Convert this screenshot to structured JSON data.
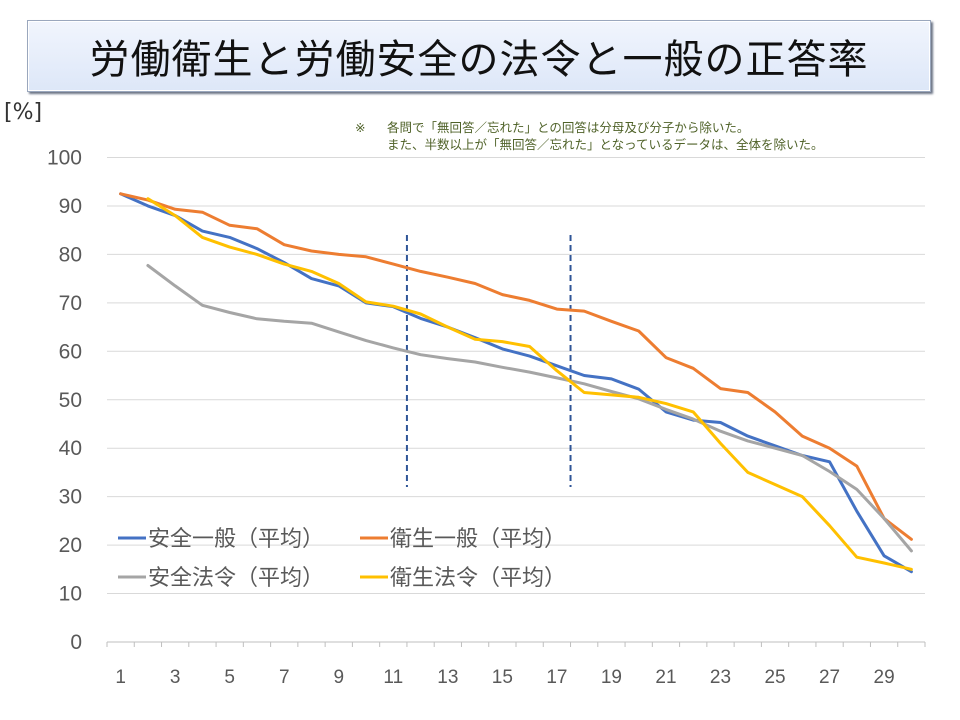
{
  "title": "労働衛生と労働安全の法令と一般の正答率",
  "unit_label": "[%]",
  "note": {
    "mark": "※",
    "line1": "各問で「無回答／忘れた」との回答は分母及び分子から除いた。",
    "line2": "また、半数以上が「無回答／忘れた」となっているデータは、全体を除いた。"
  },
  "chart_data": {
    "type": "line",
    "title": "労働衛生と労働安全の法令と一般の正答率",
    "ylabel": "[%]",
    "xlabel": "",
    "ylim": [
      0,
      100
    ],
    "yticks": [
      0,
      10,
      20,
      30,
      40,
      50,
      60,
      70,
      80,
      90,
      100
    ],
    "x": [
      1,
      2,
      3,
      4,
      5,
      6,
      7,
      8,
      9,
      10,
      11,
      12,
      13,
      14,
      15,
      16,
      17,
      18,
      19,
      20,
      21,
      22,
      23,
      24,
      25,
      26,
      27,
      28,
      29,
      30
    ],
    "xtick_labels": [
      "1",
      "3",
      "5",
      "7",
      "9",
      "11",
      "13",
      "15",
      "17",
      "19",
      "21",
      "23",
      "25",
      "27",
      "29"
    ],
    "grid": true,
    "legend_position": "bottom-left",
    "reference_lines": [
      {
        "x": 11.5,
        "y_range": [
          32,
          84
        ],
        "style": "dashed",
        "color": "#2f5597"
      },
      {
        "x": 17.5,
        "y_range": [
          32,
          84
        ],
        "style": "dashed",
        "color": "#2f5597"
      }
    ],
    "series": [
      {
        "name": "安全一般（平均）",
        "color": "#4472c4",
        "values": [
          92.5,
          90,
          88,
          84.8,
          83.5,
          81.2,
          78.3,
          75,
          73.5,
          70,
          69.2,
          66.8,
          65,
          62.8,
          60.5,
          59,
          57,
          55,
          54.3,
          52.2,
          47.5,
          45.8,
          45.3,
          42.5,
          40.5,
          38.5,
          37.2,
          27,
          17.8,
          14.5
        ]
      },
      {
        "name": "衛生一般（平均）",
        "color": "#ed7d31",
        "values": [
          92.5,
          91.2,
          89.3,
          88.7,
          86,
          85.3,
          82,
          80.7,
          80,
          79.5,
          78,
          76.5,
          75.3,
          74,
          71.7,
          70.5,
          68.7,
          68.3,
          66.2,
          64.2,
          58.7,
          56.5,
          52.3,
          51.5,
          47.5,
          42.5,
          40,
          36.3,
          25.5,
          21.2
        ]
      },
      {
        "name": "安全法令（平均）",
        "color": "#a5a5a5",
        "values": [
          null,
          77.7,
          73.5,
          69.5,
          68,
          66.7,
          66.2,
          65.8,
          64,
          62.2,
          60.7,
          59.3,
          58.5,
          57.8,
          56.7,
          55.7,
          54.5,
          53.3,
          51.7,
          50.2,
          48,
          46,
          43.5,
          41.5,
          40,
          38.5,
          35.2,
          31.5,
          25.5,
          18.8
        ]
      },
      {
        "name": "衛生法令（平均）",
        "color": "#ffc000",
        "values": [
          null,
          91.5,
          88,
          83.5,
          81.5,
          80,
          78,
          76.5,
          74,
          70.2,
          69.3,
          67.7,
          65,
          62.5,
          62,
          61,
          56,
          51.5,
          51,
          50.5,
          49.2,
          47.5,
          41,
          35,
          32.5,
          30,
          24,
          17.5,
          16.3,
          15
        ]
      }
    ]
  }
}
